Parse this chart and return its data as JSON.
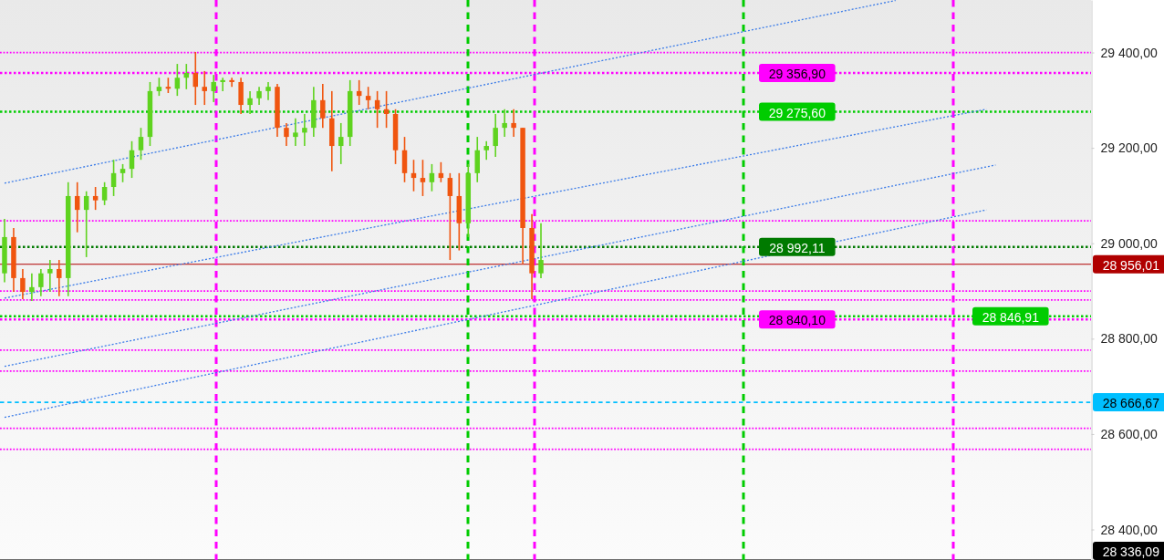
{
  "chart_data": {
    "type": "candlestick",
    "ylim": [
      28336,
      29510
    ],
    "tick_labels": "y",
    "grid": false,
    "categories": [
      null,
      null,
      null,
      null,
      null,
      null,
      null,
      null,
      null,
      null,
      null,
      null,
      null,
      null,
      null,
      null,
      null,
      null,
      null,
      null,
      null,
      null,
      null,
      null,
      null,
      null,
      null,
      null,
      null,
      null,
      null,
      null,
      null,
      null,
      null,
      null,
      null,
      null,
      null,
      null,
      null,
      null,
      null,
      null,
      null,
      null,
      null,
      null,
      null,
      null,
      null,
      null,
      null,
      null,
      null,
      null,
      null,
      null,
      null,
      null,
      null,
      null,
      null,
      null,
      null,
      null,
      null,
      null,
      null,
      null,
      null,
      null,
      null,
      null,
      null,
      null,
      null,
      null,
      null,
      null,
      null,
      null,
      null,
      null,
      null,
      null,
      null,
      null,
      null,
      null,
      null,
      null,
      null,
      null,
      null,
      null,
      null,
      null,
      null,
      null,
      null,
      null,
      null,
      null,
      null,
      null,
      null,
      null,
      null,
      null,
      null,
      null,
      null,
      null,
      null,
      null,
      null,
      null,
      null,
      null
    ],
    "yticks": [
      {
        "value": 28400,
        "label": "28 400,00"
      },
      {
        "value": 28600,
        "label": "28 600,00"
      },
      {
        "value": 28800,
        "label": "28 800,00"
      },
      {
        "value": 29000,
        "label": "29 000,00"
      },
      {
        "value": 29200,
        "label": "29 200,00"
      },
      {
        "value": 29400,
        "label": "29 400,00"
      }
    ],
    "series": [
      {
        "ohlc": [
          [
            28937,
            29051,
            28918,
            29013
          ],
          [
            29013,
            29032,
            28898,
            28927
          ],
          [
            28927,
            28946,
            28883,
            28898
          ],
          [
            28898,
            28937,
            28879,
            28908
          ],
          [
            28908,
            28946,
            28889,
            28937
          ],
          [
            28937,
            28965,
            28898,
            28946
          ],
          [
            28946,
            28965,
            28889,
            28927
          ],
          [
            28927,
            29128,
            28889,
            29099
          ],
          [
            29099,
            29128,
            29023,
            29070
          ],
          [
            29070,
            29109,
            28971,
            29099
          ],
          [
            29099,
            29118,
            29070,
            29090
          ],
          [
            29090,
            29128,
            29080,
            29118
          ],
          [
            29118,
            29175,
            29099,
            29147
          ],
          [
            29147,
            29166,
            29128,
            29156
          ],
          [
            29156,
            29214,
            29137,
            29195
          ],
          [
            29195,
            29242,
            29175,
            29223
          ],
          [
            29223,
            29338,
            29204,
            29319
          ],
          [
            29319,
            29347,
            29309,
            29328
          ],
          [
            29328,
            29347,
            29315,
            29324
          ],
          [
            29324,
            29376,
            29309,
            29347
          ],
          [
            29347,
            29376,
            29323,
            29357
          ],
          [
            29357,
            29401,
            29290,
            29328
          ],
          [
            29328,
            29361,
            29290,
            29319
          ],
          [
            29319,
            29353,
            29296,
            29338
          ],
          [
            29338,
            29347,
            29319,
            29342
          ],
          [
            29342,
            29347,
            29328,
            29338
          ],
          [
            29338,
            29347,
            29271,
            29290
          ],
          [
            29290,
            29319,
            29271,
            29304
          ],
          [
            29304,
            29328,
            29290,
            29319
          ],
          [
            29319,
            29338,
            29300,
            29328
          ],
          [
            29328,
            29334,
            29223,
            29242
          ],
          [
            29242,
            29252,
            29204,
            29223
          ],
          [
            29223,
            29262,
            29204,
            29232
          ],
          [
            29232,
            29271,
            29204,
            29242
          ],
          [
            29242,
            29328,
            29223,
            29300
          ],
          [
            29300,
            29334,
            29242,
            29262
          ],
          [
            29262,
            29319,
            29151,
            29204
          ],
          [
            29204,
            29252,
            29166,
            29223
          ],
          [
            29223,
            29342,
            29204,
            29319
          ],
          [
            29319,
            29342,
            29290,
            29309
          ],
          [
            29309,
            29328,
            29281,
            29300
          ],
          [
            29300,
            29319,
            29242,
            29281
          ],
          [
            29281,
            29319,
            29242,
            29271
          ],
          [
            29271,
            29281,
            29166,
            29195
          ],
          [
            29195,
            29223,
            29128,
            29147
          ],
          [
            29147,
            29175,
            29109,
            29137
          ],
          [
            29137,
            29175,
            29099,
            29128
          ],
          [
            29128,
            29166,
            29109,
            29147
          ],
          [
            29147,
            29170,
            29128,
            29137
          ],
          [
            29137,
            29147,
            28965,
            29099
          ],
          [
            29099,
            29147,
            28985,
            29042
          ],
          [
            29042,
            29166,
            29013,
            29147
          ],
          [
            29147,
            29223,
            29128,
            29195
          ],
          [
            29195,
            29214,
            29175,
            29204
          ],
          [
            29204,
            29271,
            29181,
            29242
          ],
          [
            29242,
            29281,
            29223,
            29252
          ],
          [
            29252,
            29281,
            29223,
            29242
          ],
          [
            29242,
            29242,
            28956,
            29032
          ],
          [
            29032,
            29061,
            28883,
            28937
          ],
          [
            28937,
            29042,
            28927,
            28965
          ],
          null,
          null,
          null,
          null,
          null,
          null,
          null,
          null,
          null,
          null,
          null,
          null,
          null,
          null,
          null,
          null,
          null,
          null,
          null,
          null,
          null,
          null,
          null,
          null,
          null,
          null,
          null,
          null,
          null,
          null,
          null,
          null,
          null,
          null,
          null,
          null,
          null,
          null,
          null,
          null,
          null,
          null,
          null,
          null,
          null,
          null,
          null,
          null,
          null,
          null,
          null,
          null,
          null,
          null,
          null,
          null,
          null,
          null,
          null,
          null
        ],
        "colors": [
          "#5fd31f",
          "#f0550f",
          "#f0550f",
          "#5fd31f",
          "#5fd31f",
          "#5fd31f",
          "#f0550f",
          "#5fd31f",
          "#f0550f",
          "#5fd31f",
          "#f0550f",
          "#5fd31f",
          "#5fd31f",
          "#5fd31f",
          "#5fd31f",
          "#5fd31f",
          "#5fd31f",
          "#5fd31f",
          "#f0550f",
          "#5fd31f",
          "#5fd31f",
          "#f0550f",
          "#f0550f",
          "#5fd31f",
          "#5fd31f",
          "#f0550f",
          "#f0550f",
          "#5fd31f",
          "#5fd31f",
          "#5fd31f",
          "#f0550f",
          "#f0550f",
          "#5fd31f",
          "#5fd31f",
          "#5fd31f",
          "#f0550f",
          "#f0550f",
          "#5fd31f",
          "#5fd31f",
          "#f0550f",
          "#f0550f",
          "#f0550f",
          "#f0550f",
          "#f0550f",
          "#f0550f",
          "#f0550f",
          "#f0550f",
          "#5fd31f",
          "#f0550f",
          "#f0550f",
          "#f0550f",
          "#5fd31f",
          "#5fd31f",
          "#5fd31f",
          "#5fd31f",
          "#5fd31f",
          "#f0550f",
          "#f0550f",
          "#f0550f",
          "#5fd31f",
          null,
          null,
          null,
          null,
          null,
          null,
          null,
          null,
          null,
          null,
          null,
          null,
          null,
          null,
          null,
          null,
          null,
          null,
          null,
          null,
          null,
          null,
          null,
          null,
          null,
          null,
          null,
          null,
          null,
          null,
          null,
          null,
          null,
          null,
          null,
          null,
          null,
          null,
          null,
          null,
          null,
          null,
          null,
          null,
          null,
          null,
          null,
          null,
          null,
          null,
          null,
          null,
          null,
          null,
          null,
          null,
          null,
          null,
          null,
          null
        ]
      },
      {
        "type": "line",
        "values": [
          29126,
          null,
          null,
          null,
          null,
          null,
          null,
          null,
          null,
          null,
          null,
          null,
          null,
          null,
          null,
          null,
          null,
          null,
          null,
          null,
          null,
          null,
          null,
          null,
          null,
          null,
          null,
          null,
          null,
          null,
          null,
          null,
          null,
          null,
          null,
          null,
          null,
          null,
          null,
          null,
          null,
          null,
          null,
          null,
          null,
          null,
          null,
          null,
          null,
          null,
          null,
          null,
          null,
          null,
          null,
          null,
          null,
          null,
          null,
          null,
          null,
          null,
          null,
          null,
          null,
          null,
          null,
          null,
          null,
          null,
          null,
          null,
          null,
          null,
          null,
          null,
          null,
          null,
          null,
          null,
          null,
          null,
          null,
          null,
          null,
          null,
          null,
          null,
          null,
          null,
          null,
          null,
          null,
          null,
          null,
          null,
          null,
          null,
          29509,
          null,
          null,
          null,
          null,
          null,
          null,
          null,
          null,
          null,
          null,
          null,
          null,
          null,
          null,
          null,
          null,
          null,
          null,
          null,
          null,
          null
        ],
        "color": "#3a7be8",
        "line_style": "dotted",
        "marker": "none"
      },
      {
        "type": "line",
        "values": [
          28885,
          null,
          null,
          null,
          null,
          null,
          null,
          null,
          null,
          null,
          null,
          null,
          null,
          null,
          null,
          null,
          null,
          null,
          null,
          null,
          null,
          null,
          null,
          null,
          null,
          null,
          null,
          null,
          null,
          null,
          null,
          null,
          null,
          null,
          null,
          null,
          null,
          null,
          null,
          null,
          null,
          null,
          null,
          null,
          null,
          null,
          null,
          null,
          null,
          null,
          null,
          null,
          null,
          null,
          null,
          null,
          null,
          null,
          null,
          null,
          null,
          null,
          null,
          null,
          null,
          null,
          null,
          null,
          null,
          null,
          null,
          null,
          null,
          null,
          null,
          null,
          null,
          null,
          null,
          null,
          null,
          null,
          null,
          null,
          null,
          null,
          null,
          null,
          null,
          null,
          null,
          null,
          null,
          null,
          null,
          null,
          null,
          null,
          null,
          null,
          null,
          null,
          null,
          null,
          null,
          null,
          null,
          null,
          29281,
          null,
          null,
          null,
          null,
          null,
          null,
          null,
          null,
          null,
          null,
          null
        ],
        "color": "#3a7be8",
        "line_style": "dotted",
        "marker": "none"
      },
      {
        "type": "line",
        "values": [
          28742,
          null,
          null,
          null,
          null,
          null,
          null,
          null,
          null,
          null,
          null,
          null,
          null,
          null,
          null,
          null,
          null,
          null,
          null,
          null,
          null,
          null,
          null,
          null,
          null,
          null,
          null,
          null,
          null,
          null,
          null,
          null,
          null,
          null,
          null,
          null,
          null,
          null,
          null,
          null,
          null,
          null,
          null,
          null,
          null,
          null,
          null,
          null,
          null,
          null,
          null,
          null,
          null,
          null,
          null,
          null,
          null,
          null,
          null,
          null,
          null,
          null,
          null,
          null,
          null,
          null,
          null,
          null,
          null,
          null,
          null,
          null,
          null,
          null,
          null,
          null,
          null,
          null,
          null,
          null,
          null,
          null,
          null,
          null,
          null,
          null,
          null,
          null,
          null,
          null,
          null,
          null,
          null,
          null,
          null,
          null,
          null,
          null,
          null,
          null,
          null,
          null,
          null,
          null,
          null,
          null,
          null,
          null,
          null,
          29164,
          null,
          null,
          null,
          null,
          null,
          null,
          null,
          null,
          null,
          null
        ],
        "color": "#3a7be8",
        "line_style": "dotted",
        "marker": "none"
      },
      {
        "type": "line",
        "values": [
          28635,
          null,
          null,
          null,
          null,
          null,
          null,
          null,
          null,
          null,
          null,
          null,
          null,
          null,
          null,
          null,
          null,
          null,
          null,
          null,
          null,
          null,
          null,
          null,
          null,
          null,
          null,
          null,
          null,
          null,
          null,
          null,
          null,
          null,
          null,
          null,
          null,
          null,
          null,
          null,
          null,
          null,
          null,
          null,
          null,
          null,
          null,
          null,
          null,
          null,
          null,
          null,
          null,
          null,
          null,
          null,
          null,
          null,
          null,
          null,
          null,
          null,
          null,
          null,
          null,
          null,
          null,
          null,
          null,
          null,
          null,
          null,
          null,
          null,
          null,
          null,
          null,
          null,
          null,
          null,
          null,
          null,
          null,
          null,
          null,
          null,
          null,
          null,
          null,
          null,
          null,
          null,
          null,
          null,
          null,
          null,
          null,
          null,
          null,
          null,
          null,
          null,
          null,
          null,
          null,
          null,
          null,
          null,
          29070,
          null,
          null,
          null,
          null,
          null,
          null,
          null,
          null,
          null,
          null,
          null
        ],
        "color": "#3a7be8",
        "line_style": "dotted",
        "marker": "none"
      }
    ],
    "ref_lines": [
      {
        "axis": "y",
        "value": 29400,
        "color": "#ff00ff",
        "line_style": "dotted"
      },
      {
        "axis": "y",
        "value": 29356.9,
        "label": "29 356,90",
        "color": "#ff00ff",
        "line_style": "dotted"
      },
      {
        "axis": "y",
        "value": 29275.6,
        "label": "29 275,60",
        "color": "#00cc00",
        "line_style": "dotted"
      },
      {
        "axis": "y",
        "value": 29047,
        "color": "#ff00ff",
        "line_style": "dotted"
      },
      {
        "axis": "y",
        "value": 28992.11,
        "label": "28 992,11",
        "color": "#007a00",
        "line_style": "dotted"
      },
      {
        "axis": "y",
        "value": 28956.01,
        "label": "28 956,01",
        "color": "#b00000",
        "line_style": "solid"
      },
      {
        "axis": "y",
        "value": 28900,
        "color": "#ff00ff",
        "line_style": "dotted"
      },
      {
        "axis": "y",
        "value": 28881,
        "color": "#ff00ff",
        "line_style": "dotted"
      },
      {
        "axis": "y",
        "value": 28840.1,
        "label": "28 840,10",
        "color": "#ff00ff",
        "line_style": "dotted"
      },
      {
        "axis": "y",
        "value": 28846.91,
        "label": "28 846,91",
        "color": "#00cc00",
        "line_style": "dotted"
      },
      {
        "axis": "y",
        "value": 28776,
        "color": "#ff00ff",
        "line_style": "dotted"
      },
      {
        "axis": "y",
        "value": 28732,
        "color": "#ff00ff",
        "line_style": "dotted"
      },
      {
        "axis": "y",
        "value": 28666.67,
        "label": "28 666,67",
        "color": "#00bfff",
        "line_style": "dashed"
      },
      {
        "axis": "y",
        "value": 28612,
        "color": "#ff00ff",
        "line_style": "dotted"
      },
      {
        "axis": "y",
        "value": 28568,
        "color": "#ff00ff",
        "line_style": "dotted"
      },
      {
        "axis": "y",
        "value": 28336.09,
        "label": "28 336,09",
        "color": "#000000",
        "line_style": "solid"
      }
    ]
  }
}
